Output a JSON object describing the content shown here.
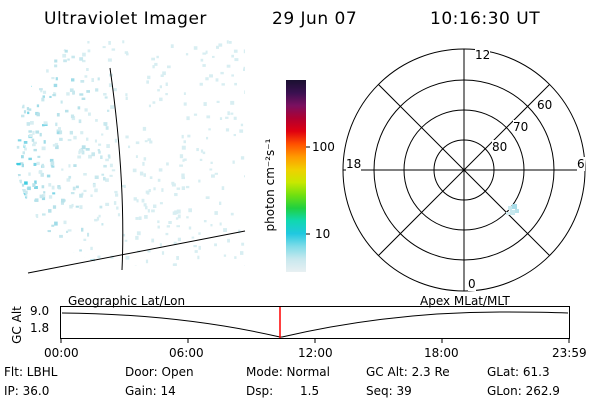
{
  "header": {
    "title": "Ultraviolet Imager",
    "date": "29 Jun 07",
    "time": "10:16:30 UT"
  },
  "colorbar": {
    "unit_label": "photon cm⁻²s⁻¹",
    "ticks": [
      "100",
      "10"
    ],
    "colors": [
      "#1a1030",
      "#3a1050",
      "#7a1060",
      "#b00030",
      "#e00010",
      "#ff5000",
      "#ff9a00",
      "#f0d000",
      "#c8e800",
      "#70e010",
      "#20d040",
      "#10d8b0",
      "#20c8e0",
      "#80dce8",
      "#c8e8ee",
      "#e8f0f2"
    ]
  },
  "polar_plot": {
    "mlt_labels": {
      "top": "12",
      "bottom": "0",
      "left": "18",
      "right": "6"
    },
    "lat_labels": [
      "60",
      "70",
      "80"
    ]
  },
  "timeline": {
    "left_label": "Geographic Lat/Lon",
    "right_label": "Apex MLat/MLT",
    "axis_title": "GC Alt",
    "y_ticks": [
      "9.0",
      "1.8"
    ],
    "x_ticks": [
      "00:00",
      "06:00",
      "12:00",
      "18:00",
      "23:59"
    ],
    "marker_color": "#ff0000"
  },
  "info": {
    "filter": "Flt: LBHL",
    "ip": "IP: 36.0",
    "door": "Door: Open",
    "gain": "Gain: 14",
    "mode": "Mode: Normal",
    "dsp_label": "Dsp:",
    "dsp_value": "1.5",
    "gc_alt": "GC Alt: 2.3 Re",
    "seq": "Seq: 39",
    "glat": "GLat: 61.3",
    "glon": "GLon: 262.9"
  }
}
